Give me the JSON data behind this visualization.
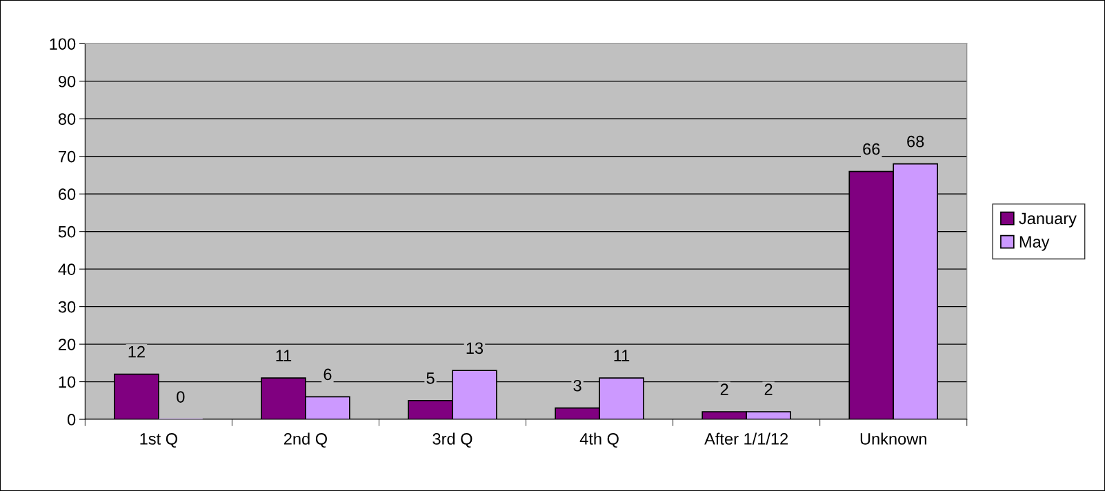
{
  "chart_data": {
    "type": "bar",
    "categories": [
      "1st Q",
      "2nd Q",
      "3rd Q",
      "4th Q",
      "After 1/1/12",
      "Unknown"
    ],
    "series": [
      {
        "name": "January",
        "color": "#800080",
        "values": [
          12,
          11,
          5,
          3,
          2,
          66
        ]
      },
      {
        "name": "May",
        "color": "#cc99ff",
        "values": [
          0,
          6,
          13,
          11,
          2,
          68
        ]
      }
    ],
    "ylim": [
      0,
      100
    ],
    "yticks": [
      0,
      10,
      20,
      30,
      40,
      50,
      60,
      70,
      80,
      90,
      100
    ],
    "grid": "y",
    "legend": "right",
    "data_labels": true
  }
}
